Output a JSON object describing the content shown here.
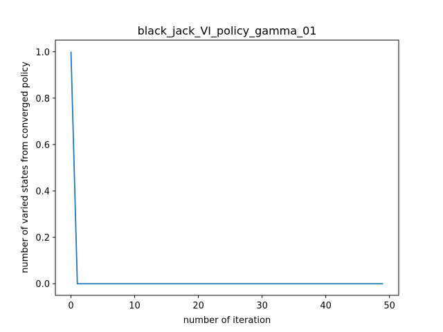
{
  "chart_data": {
    "type": "line",
    "title": "black_jack_VI_policy_gamma_01",
    "xlabel": "number of iteration",
    "ylabel": "number of varied states from converged policy",
    "xlim": [
      -2.45,
      51.45
    ],
    "ylim": [
      -0.05,
      1.05
    ],
    "x_ticks": [
      0,
      10,
      20,
      30,
      40,
      50
    ],
    "x_tick_labels": [
      "0",
      "10",
      "20",
      "30",
      "40",
      "50"
    ],
    "y_ticks": [
      0.0,
      0.2,
      0.4,
      0.6,
      0.8,
      1.0
    ],
    "y_tick_labels": [
      "0.0",
      "0.2",
      "0.4",
      "0.6",
      "0.8",
      "1.0"
    ],
    "grid": false,
    "series": [
      {
        "color": "#1f77b4",
        "x": [
          0,
          1,
          2,
          3,
          4,
          5,
          6,
          7,
          8,
          9,
          10,
          11,
          12,
          13,
          14,
          15,
          16,
          17,
          18,
          19,
          20,
          21,
          22,
          23,
          24,
          25,
          26,
          27,
          28,
          29,
          30,
          31,
          32,
          33,
          34,
          35,
          36,
          37,
          38,
          39,
          40,
          41,
          42,
          43,
          44,
          45,
          46,
          47,
          48,
          49
        ],
        "y": [
          1.0,
          0,
          0,
          0,
          0,
          0,
          0,
          0,
          0,
          0,
          0,
          0,
          0,
          0,
          0,
          0,
          0,
          0,
          0,
          0,
          0,
          0,
          0,
          0,
          0,
          0,
          0,
          0,
          0,
          0,
          0,
          0,
          0,
          0,
          0,
          0,
          0,
          0,
          0,
          0,
          0,
          0,
          0,
          0,
          0,
          0,
          0,
          0,
          0,
          0
        ]
      }
    ]
  }
}
